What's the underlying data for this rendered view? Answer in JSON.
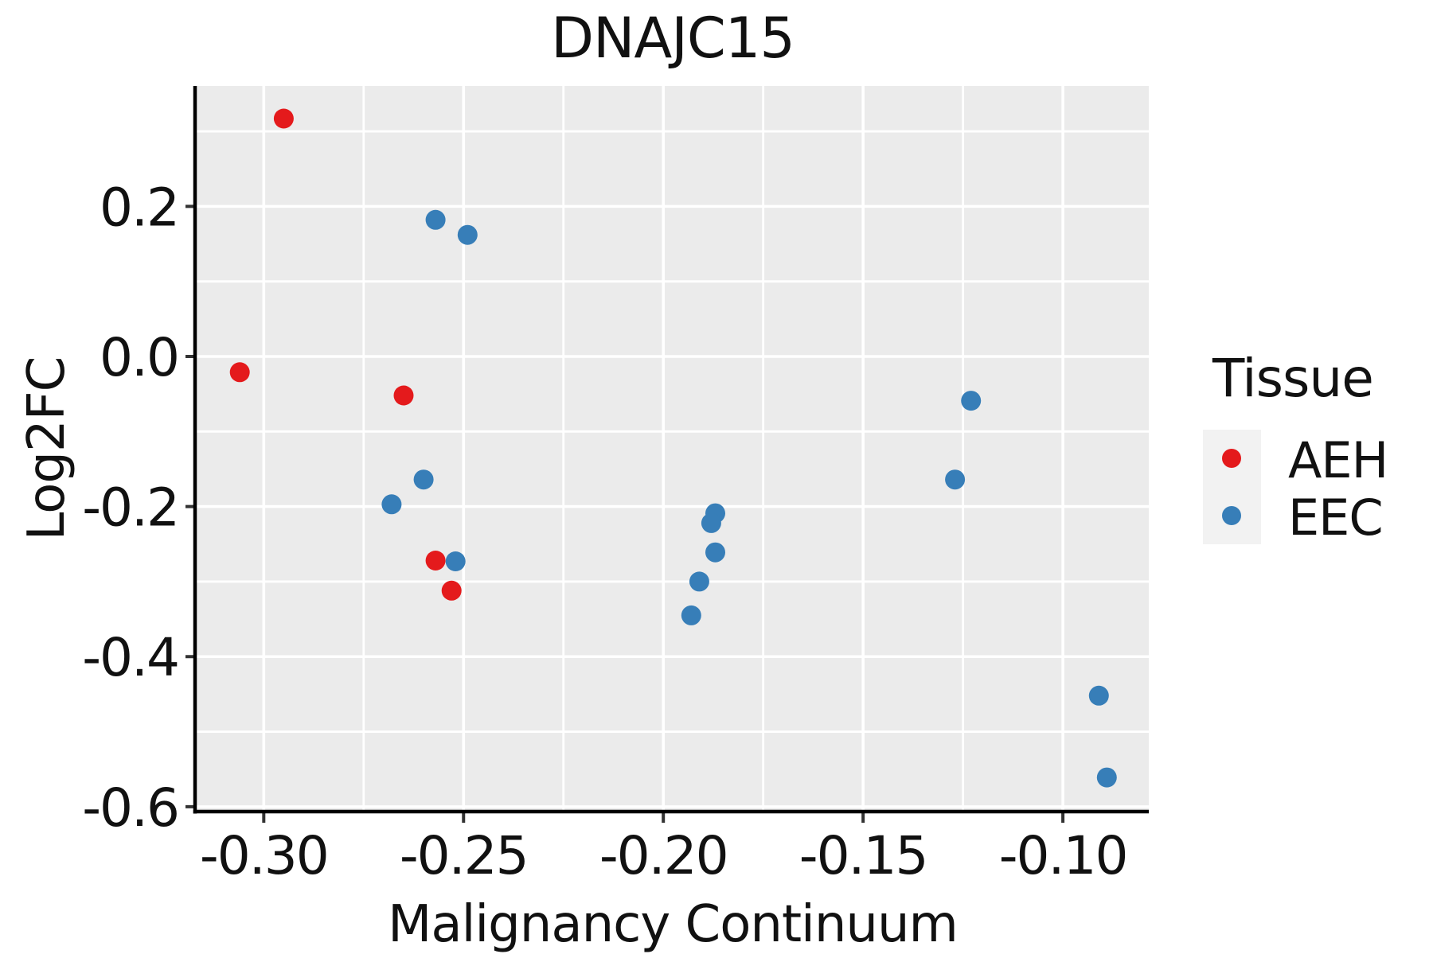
{
  "chart_data": {
    "type": "scatter",
    "title": "DNAJC15",
    "xlabel": "Malignancy Continuum",
    "ylabel": "Log2FC",
    "xlim": [
      -0.3168,
      -0.0785
    ],
    "ylim": [
      -0.6065,
      0.3605
    ],
    "x_major_ticks": {
      "values": [
        -0.3,
        -0.25,
        -0.2,
        -0.15,
        -0.1
      ],
      "labels": [
        "-0.30",
        "-0.25",
        "-0.20",
        "-0.15",
        "-0.10"
      ]
    },
    "y_major_ticks": {
      "values": [
        0.2,
        0.0,
        -0.2,
        -0.4,
        -0.6
      ],
      "labels": [
        "0.2",
        "0.0",
        "-0.2",
        "-0.4",
        "-0.6"
      ]
    },
    "x_minor_ticks": [
      -0.275,
      -0.225,
      -0.175,
      -0.125
    ],
    "y_minor_ticks": [
      0.3,
      0.1,
      -0.1,
      -0.3,
      -0.5
    ],
    "grid": {
      "major": true,
      "minor": true,
      "color": "#FFFFFF"
    },
    "panel_background": "#EBEBEB",
    "axis_color": "#000000",
    "tick_color": "#333333",
    "legend": {
      "title": "Tissue",
      "position": "right",
      "key_background": "#F2F2F2",
      "items": [
        {
          "label": "AEH",
          "color": "#E41A1C"
        },
        {
          "label": "EEC",
          "color": "#377EB8"
        }
      ]
    },
    "series": [
      {
        "name": "AEH",
        "color": "#E41A1C",
        "points": [
          [
            -0.295,
            0.317
          ],
          [
            -0.306,
            -0.021
          ],
          [
            -0.265,
            -0.052
          ],
          [
            -0.257,
            -0.272
          ],
          [
            -0.253,
            -0.312
          ]
        ]
      },
      {
        "name": "EEC",
        "color": "#377EB8",
        "points": [
          [
            -0.257,
            0.182
          ],
          [
            -0.249,
            0.162
          ],
          [
            -0.268,
            -0.197
          ],
          [
            -0.26,
            -0.164
          ],
          [
            -0.252,
            -0.273
          ],
          [
            -0.187,
            -0.209
          ],
          [
            -0.188,
            -0.222
          ],
          [
            -0.187,
            -0.261
          ],
          [
            -0.191,
            -0.3
          ],
          [
            -0.193,
            -0.345
          ],
          [
            -0.123,
            -0.059
          ],
          [
            -0.127,
            -0.164
          ],
          [
            -0.091,
            -0.452
          ],
          [
            -0.089,
            -0.561
          ]
        ]
      }
    ]
  }
}
